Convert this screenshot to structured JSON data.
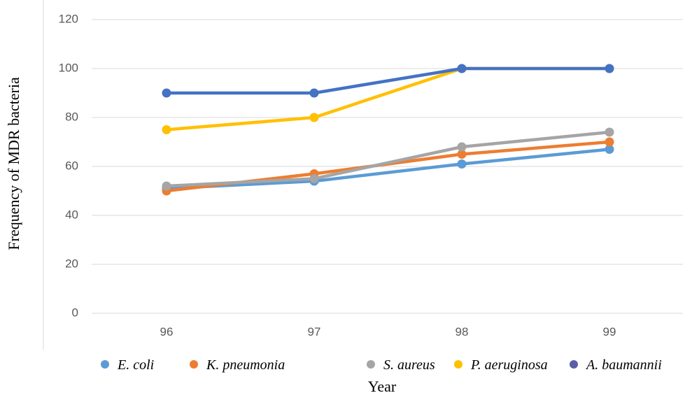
{
  "chart_data": {
    "type": "line",
    "title": "",
    "xlabel": "Year",
    "ylabel": "Frequency of MDR bacteria",
    "categories": [
      "96",
      "97",
      "98",
      "99"
    ],
    "ylim": [
      0,
      120
    ],
    "yticks": [
      "0",
      "20",
      "40",
      "60",
      "80",
      "100",
      "120"
    ],
    "grid": true,
    "legend_position": "bottom",
    "series": [
      {
        "name": "E. coli",
        "color": "#5B9BD5",
        "values": [
          51,
          54,
          61,
          67
        ]
      },
      {
        "name": "K. pneumonia",
        "color": "#ED7D31",
        "values": [
          50,
          57,
          65,
          70
        ]
      },
      {
        "name": "S. aureus",
        "color": "#A5A5A5",
        "values": [
          52,
          55,
          68,
          74
        ]
      },
      {
        "name": "P. aeruginosa",
        "color": "#FFC000",
        "values": [
          75,
          80,
          100,
          100
        ]
      },
      {
        "name": "A. baumannii",
        "color": "#4472C4",
        "legend_color": "#5B5EA6",
        "values": [
          90,
          90,
          100,
          100
        ]
      }
    ]
  }
}
